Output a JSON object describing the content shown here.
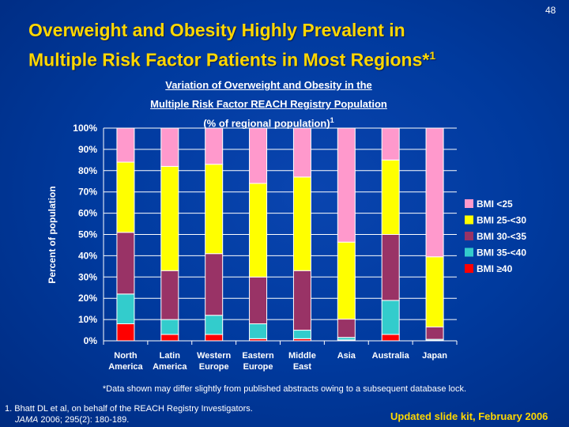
{
  "slide": {
    "page_number": "48",
    "title_line1": "Overweight and Obesity Highly Prevalent in",
    "title_line2": "Multiple Risk Factor Patients in Most Regions*",
    "title_sup": "1",
    "footnote": "*Data shown may differ slightly from published abstracts owing to a subsequent database lock.",
    "reference_line1": "1. Bhatt DL et al, on behalf of the REACH Registry Investigators.",
    "reference_journal": "JAMA",
    "reference_line2": " 2006; 295(2): 180-189.",
    "updated": "Updated slide kit, February 2006"
  },
  "chart_data": {
    "type": "bar",
    "stacked": true,
    "title_lines": [
      "Variation of Overweight and Obesity in the",
      "Multiple Risk Factor REACH Registry Population",
      "(% of regional population)"
    ],
    "title_sup": "1",
    "ylabel": "Percent of population",
    "ylim": [
      0,
      100
    ],
    "yticks": [
      "0%",
      "10%",
      "20%",
      "30%",
      "40%",
      "50%",
      "60%",
      "70%",
      "80%",
      "90%",
      "100%"
    ],
    "grid": true,
    "legend_position": "right",
    "categories": [
      [
        "North",
        "America"
      ],
      [
        "Latin",
        "America"
      ],
      [
        "Western",
        "Europe"
      ],
      [
        "Eastern",
        "Europe"
      ],
      [
        "Middle",
        "East"
      ],
      [
        "Asia",
        ""
      ],
      [
        "Australia",
        ""
      ],
      [
        "Japan",
        ""
      ]
    ],
    "series": [
      {
        "name": "BMI ≥40",
        "color": "#ff0000",
        "values": [
          8,
          3,
          3,
          1,
          1,
          0.4,
          3,
          0.2
        ]
      },
      {
        "name": "BMI 35-<40",
        "color": "#33cccc",
        "values": [
          14,
          7,
          9,
          7,
          4,
          1.2,
          16,
          0.5
        ]
      },
      {
        "name": "BMI 30-<35",
        "color": "#993366",
        "values": [
          29,
          23,
          29,
          22,
          28,
          8.6,
          31,
          5.8
        ]
      },
      {
        "name": "BMI 25-<30",
        "color": "#ffff00",
        "values": [
          33,
          49,
          42,
          44,
          44,
          36.2,
          35,
          33
        ]
      },
      {
        "name": "BMI <25",
        "color": "#ff99cc",
        "values": [
          16,
          18,
          17,
          26,
          23,
          53.6,
          15,
          60.5
        ]
      }
    ],
    "legend_order": [
      "BMI <25",
      "BMI 25-<30",
      "BMI 30-<35",
      "BMI 35-<40",
      "BMI ≥40"
    ]
  }
}
